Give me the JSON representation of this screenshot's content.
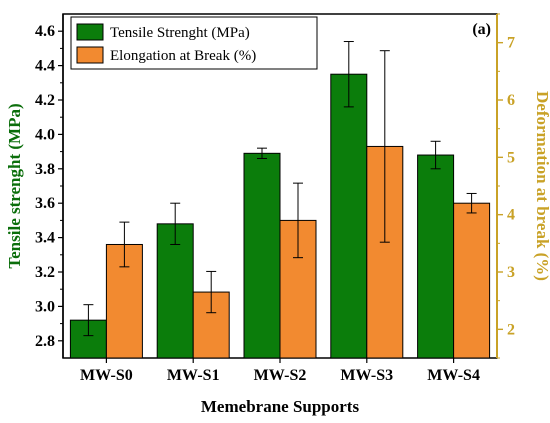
{
  "chart_data": {
    "type": "bar",
    "panel_label": "(a)",
    "categories": [
      "MW-S0",
      "MW-S1",
      "MW-S2",
      "MW-S3",
      "MW-S4"
    ],
    "xlabel": "Memebrane Supports",
    "ylabel_left": "Tensile strenght (MPa)",
    "ylabel_right": "Deformation at break (%)",
    "ylim_left": [
      2.7,
      4.7
    ],
    "ylim_right": [
      1.5,
      7.5
    ],
    "yticks_left": [
      "2.8",
      "3.0",
      "3.2",
      "3.4",
      "3.6",
      "3.8",
      "4.0",
      "4.2",
      "4.4",
      "4.6"
    ],
    "yticks_right": [
      "2",
      "3",
      "4",
      "5",
      "6",
      "7"
    ],
    "legend_position": "top-left",
    "grid": false,
    "series": [
      {
        "name": "Tensile Strenght (MPa)",
        "axis": "left",
        "color": "#0b7d0b",
        "values": [
          2.92,
          3.48,
          3.89,
          4.35,
          3.88
        ],
        "errors": [
          0.09,
          0.12,
          0.03,
          0.19,
          0.08
        ]
      },
      {
        "name": "Elongation at Break (%)",
        "axis": "right",
        "color": "#f28a30",
        "values": [
          3.48,
          2.65,
          3.9,
          5.19,
          4.2
        ],
        "errors": [
          0.39,
          0.36,
          0.65,
          1.67,
          0.17
        ]
      }
    ],
    "left_axis_color": "#0b6e0b",
    "right_axis_color": "#c9a227"
  }
}
